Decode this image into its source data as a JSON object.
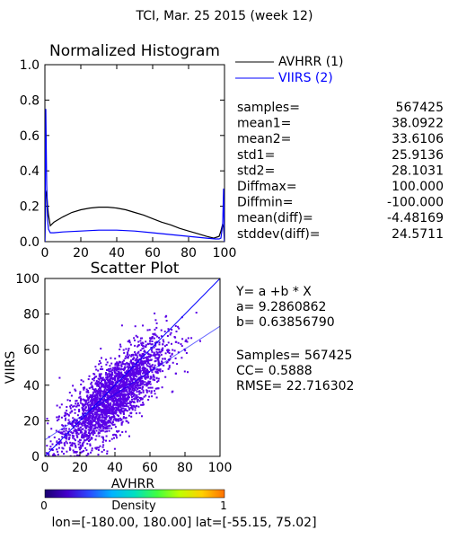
{
  "page_title": "TCI,  Mar. 25 2015 (week 12)",
  "chart_data": [
    {
      "type": "line",
      "title": "Normalized Histogram",
      "xlim": [
        0,
        100
      ],
      "ylim": [
        0,
        1.0
      ],
      "xticks": [
        "0",
        "20",
        "40",
        "60",
        "80",
        "100"
      ],
      "yticks": [
        "0.0",
        "0.2",
        "0.4",
        "0.6",
        "0.8",
        "1.0"
      ],
      "grid": false,
      "legend_position": "right",
      "series": [
        {
          "name": "AVHRR (1)",
          "color": "#000000",
          "x": [
            0,
            0.5,
            1,
            1.5,
            2,
            3,
            5,
            10,
            15,
            20,
            25,
            30,
            35,
            40,
            45,
            50,
            55,
            60,
            65,
            70,
            75,
            80,
            85,
            90,
            94,
            97,
            98,
            99,
            99.5,
            100
          ],
          "y": [
            0.0,
            0.26,
            0.29,
            0.2,
            0.15,
            0.09,
            0.11,
            0.14,
            0.165,
            0.18,
            0.19,
            0.195,
            0.195,
            0.19,
            0.18,
            0.165,
            0.15,
            0.13,
            0.11,
            0.095,
            0.075,
            0.06,
            0.045,
            0.03,
            0.02,
            0.03,
            0.06,
            0.1,
            0.08,
            0.0
          ]
        },
        {
          "name": "VIIRS (2)",
          "color": "#0000ff",
          "x": [
            0,
            0.5,
            1,
            1.5,
            2,
            3,
            5,
            10,
            20,
            30,
            40,
            50,
            60,
            70,
            80,
            90,
            95,
            97,
            98,
            99,
            99.5,
            100
          ],
          "y": [
            0.0,
            0.75,
            0.32,
            0.12,
            0.07,
            0.05,
            0.05,
            0.055,
            0.06,
            0.065,
            0.065,
            0.06,
            0.05,
            0.04,
            0.03,
            0.02,
            0.015,
            0.015,
            0.02,
            0.1,
            0.3,
            0.0
          ]
        }
      ],
      "stats": [
        {
          "label": "samples=",
          "value": "567425"
        },
        {
          "label": "mean1=",
          "value": "38.0922"
        },
        {
          "label": "mean2=",
          "value": "33.6106"
        },
        {
          "label": "std1=",
          "value": "25.9136"
        },
        {
          "label": "std2=",
          "value": "28.1031"
        },
        {
          "label": "Diffmax=",
          "value": "100.000"
        },
        {
          "label": "Diffmin=",
          "value": "-100.000"
        },
        {
          "label": "mean(diff)=",
          "value": "-4.48169"
        },
        {
          "label": "stddev(diff)=",
          "value": "24.5711"
        }
      ]
    },
    {
      "type": "scatter",
      "title": "Scatter Plot",
      "xlabel": "AVHRR",
      "ylabel": "VIIRS",
      "xlim": [
        0,
        100
      ],
      "ylim": [
        0,
        100
      ],
      "xticks": [
        "0",
        "20",
        "40",
        "60",
        "80",
        "100"
      ],
      "yticks": [
        "0",
        "20",
        "40",
        "60",
        "80",
        "100"
      ],
      "grid": false,
      "point_color": "#5a00e6",
      "density_cloud": {
        "center": [
          38,
          34
        ],
        "regression_slope": 0.6385679,
        "regression_intercept": 9.2860862,
        "spread": 16
      },
      "reference_lines": [
        {
          "type": "identity",
          "color": "#0000ff"
        },
        {
          "type": "regression",
          "color": "#0000ff",
          "slope": 0.6385679,
          "intercept": 9.2860862
        }
      ],
      "annotations": {
        "equation": "Y= a +b * X",
        "a": "a= 9.2860862",
        "b": "b= 0.63856790",
        "samples": "Samples= 567425",
        "cc": "CC=  0.5888",
        "rmse": "RMSE= 22.716302"
      }
    }
  ],
  "colorbar": {
    "label": "Density",
    "min_label": "0",
    "max_label": "1",
    "colors": [
      "#1a0070",
      "#4400cc",
      "#2a4cff",
      "#00b4ff",
      "#00e0c0",
      "#40ff40",
      "#c0ff00",
      "#ffd000",
      "#ff7000"
    ]
  },
  "footer": {
    "text": "lon=[-180.00, 180.00] lat=[-55.15, 75.02]"
  }
}
